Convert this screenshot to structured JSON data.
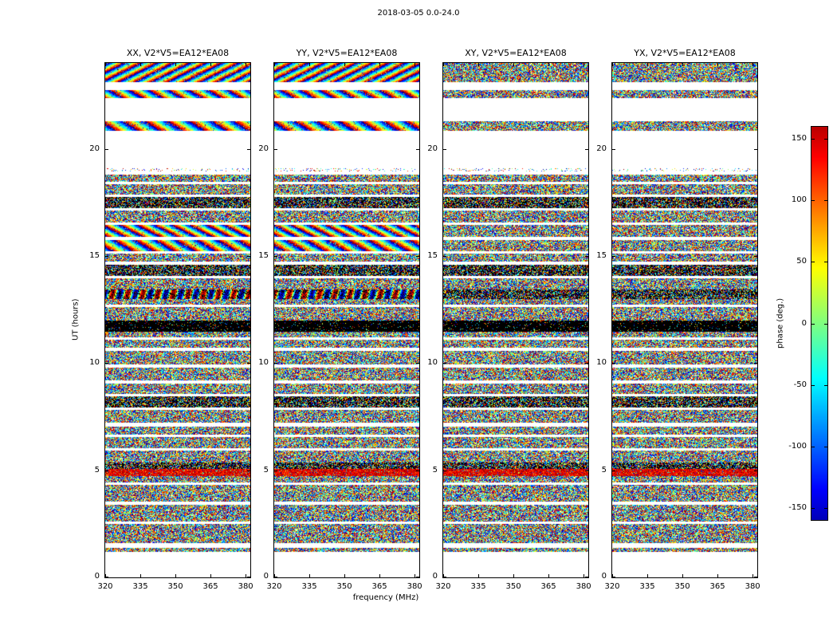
{
  "title": "2018-03-05 0.0-24.0",
  "panels": [
    {
      "id": "XX",
      "title": "XX, V2*V5=EA12*EA08",
      "coherent": true
    },
    {
      "id": "YY",
      "title": "YY, V2*V5=EA12*EA08",
      "coherent": true
    },
    {
      "id": "XY",
      "title": "XY, V2*V5=EA12*EA08",
      "coherent": false
    },
    {
      "id": "YX",
      "title": "YX, V2*V5=EA12*EA08",
      "coherent": false
    }
  ],
  "axes": {
    "xlabel": "frequency (MHz)",
    "ylabel": "UT (hours)",
    "x_ticks": [
      320,
      335,
      350,
      365,
      380
    ],
    "y_ticks": [
      0,
      5,
      10,
      15,
      20
    ],
    "xlim": [
      320,
      382
    ],
    "ylim": [
      0,
      24
    ]
  },
  "colorbar": {
    "label": "phase (deg.)",
    "ticks": [
      150,
      100,
      50,
      0,
      -50,
      -100,
      -150
    ],
    "vmin": -160,
    "vmax": 160,
    "colormap": "jet"
  },
  "chart_data": {
    "type": "heatmap",
    "title": "2018-03-05 0.0-24.0",
    "panels": [
      "XX, V2*V5=EA12*EA08",
      "YY, V2*V5=EA12*EA08",
      "XY, V2*V5=EA12*EA08",
      "YX, V2*V5=EA12*EA08"
    ],
    "xlabel": "frequency (MHz)",
    "ylabel": "UT (hours)",
    "zlabel": "phase (deg.)",
    "x_range_mhz": [
      320,
      382
    ],
    "y_range_hours": [
      0,
      24
    ],
    "z_range_deg": [
      -180,
      180
    ],
    "colormap": "jet",
    "description": "Visibility phase vs frequency and time for baseline V2*V5=EA12*EA08 over 2018-03-05 0.0-24.0 UT, four polarization products (XX, YY, XY, YX). Phase values fill the panels as dense pseudo-random speckle; XX and YY show coherent diagonal rainbow phase stripes in several time bands; white horizontal rows are flagged/missing times; a solid black band occurs near UT 11.5-12.0 and a bright red band near UT 5.",
    "time_bands": [
      [
        0,
        1.2,
        "white"
      ],
      [
        1.2,
        1.38,
        "noise"
      ],
      [
        1.38,
        1.6,
        "white"
      ],
      [
        1.6,
        2.5,
        "noise"
      ],
      [
        2.5,
        2.62,
        "white"
      ],
      [
        2.62,
        3.4,
        "noise"
      ],
      [
        3.4,
        3.52,
        "white"
      ],
      [
        3.52,
        4.3,
        "noise"
      ],
      [
        4.3,
        4.42,
        "white"
      ],
      [
        4.42,
        4.72,
        "noise"
      ],
      [
        4.72,
        5.05,
        "bright"
      ],
      [
        5.05,
        5.35,
        "dense"
      ],
      [
        5.35,
        5.9,
        "noise"
      ],
      [
        5.9,
        6.02,
        "white"
      ],
      [
        6.02,
        6.55,
        "noise"
      ],
      [
        6.55,
        6.67,
        "white"
      ],
      [
        6.67,
        7.05,
        "noise"
      ],
      [
        7.05,
        7.2,
        "white"
      ],
      [
        7.2,
        7.8,
        "noise"
      ],
      [
        7.8,
        7.92,
        "white"
      ],
      [
        7.92,
        8.45,
        "dense"
      ],
      [
        8.45,
        8.57,
        "white"
      ],
      [
        8.57,
        9.05,
        "noise"
      ],
      [
        9.05,
        9.2,
        "white"
      ],
      [
        9.2,
        9.8,
        "noise"
      ],
      [
        9.8,
        9.92,
        "white"
      ],
      [
        9.92,
        10.55,
        "noise"
      ],
      [
        10.55,
        10.7,
        "white"
      ],
      [
        10.7,
        11.1,
        "noise"
      ],
      [
        11.1,
        11.2,
        "white"
      ],
      [
        11.2,
        11.45,
        "noise"
      ],
      [
        11.45,
        12.0,
        "black"
      ],
      [
        12.0,
        12.6,
        "noise"
      ],
      [
        12.6,
        12.72,
        "white"
      ],
      [
        12.72,
        13.0,
        "noise"
      ],
      [
        13.0,
        13.45,
        "stripes-dark"
      ],
      [
        13.45,
        13.95,
        "noise"
      ],
      [
        13.95,
        14.07,
        "white"
      ],
      [
        14.07,
        14.6,
        "dense"
      ],
      [
        14.6,
        14.72,
        "white"
      ],
      [
        14.72,
        15.1,
        "noise"
      ],
      [
        15.1,
        15.22,
        "white"
      ],
      [
        15.22,
        15.75,
        "stripes"
      ],
      [
        15.75,
        15.87,
        "white"
      ],
      [
        15.87,
        16.45,
        "stripes"
      ],
      [
        16.45,
        16.57,
        "white"
      ],
      [
        16.57,
        17.1,
        "noise"
      ],
      [
        17.1,
        17.22,
        "white"
      ],
      [
        17.22,
        17.75,
        "dense"
      ],
      [
        17.75,
        17.87,
        "white"
      ],
      [
        17.87,
        18.35,
        "noise"
      ],
      [
        18.35,
        18.47,
        "white"
      ],
      [
        18.47,
        18.8,
        "noise"
      ],
      [
        18.8,
        18.95,
        "white"
      ],
      [
        18.95,
        19.1,
        "sparse"
      ],
      [
        19.1,
        20.85,
        "white"
      ],
      [
        20.85,
        21.3,
        "stripes"
      ],
      [
        21.3,
        22.35,
        "white"
      ],
      [
        22.35,
        22.75,
        "stripes"
      ],
      [
        22.75,
        23.1,
        "white"
      ],
      [
        23.1,
        24.01,
        "stripes"
      ]
    ]
  }
}
